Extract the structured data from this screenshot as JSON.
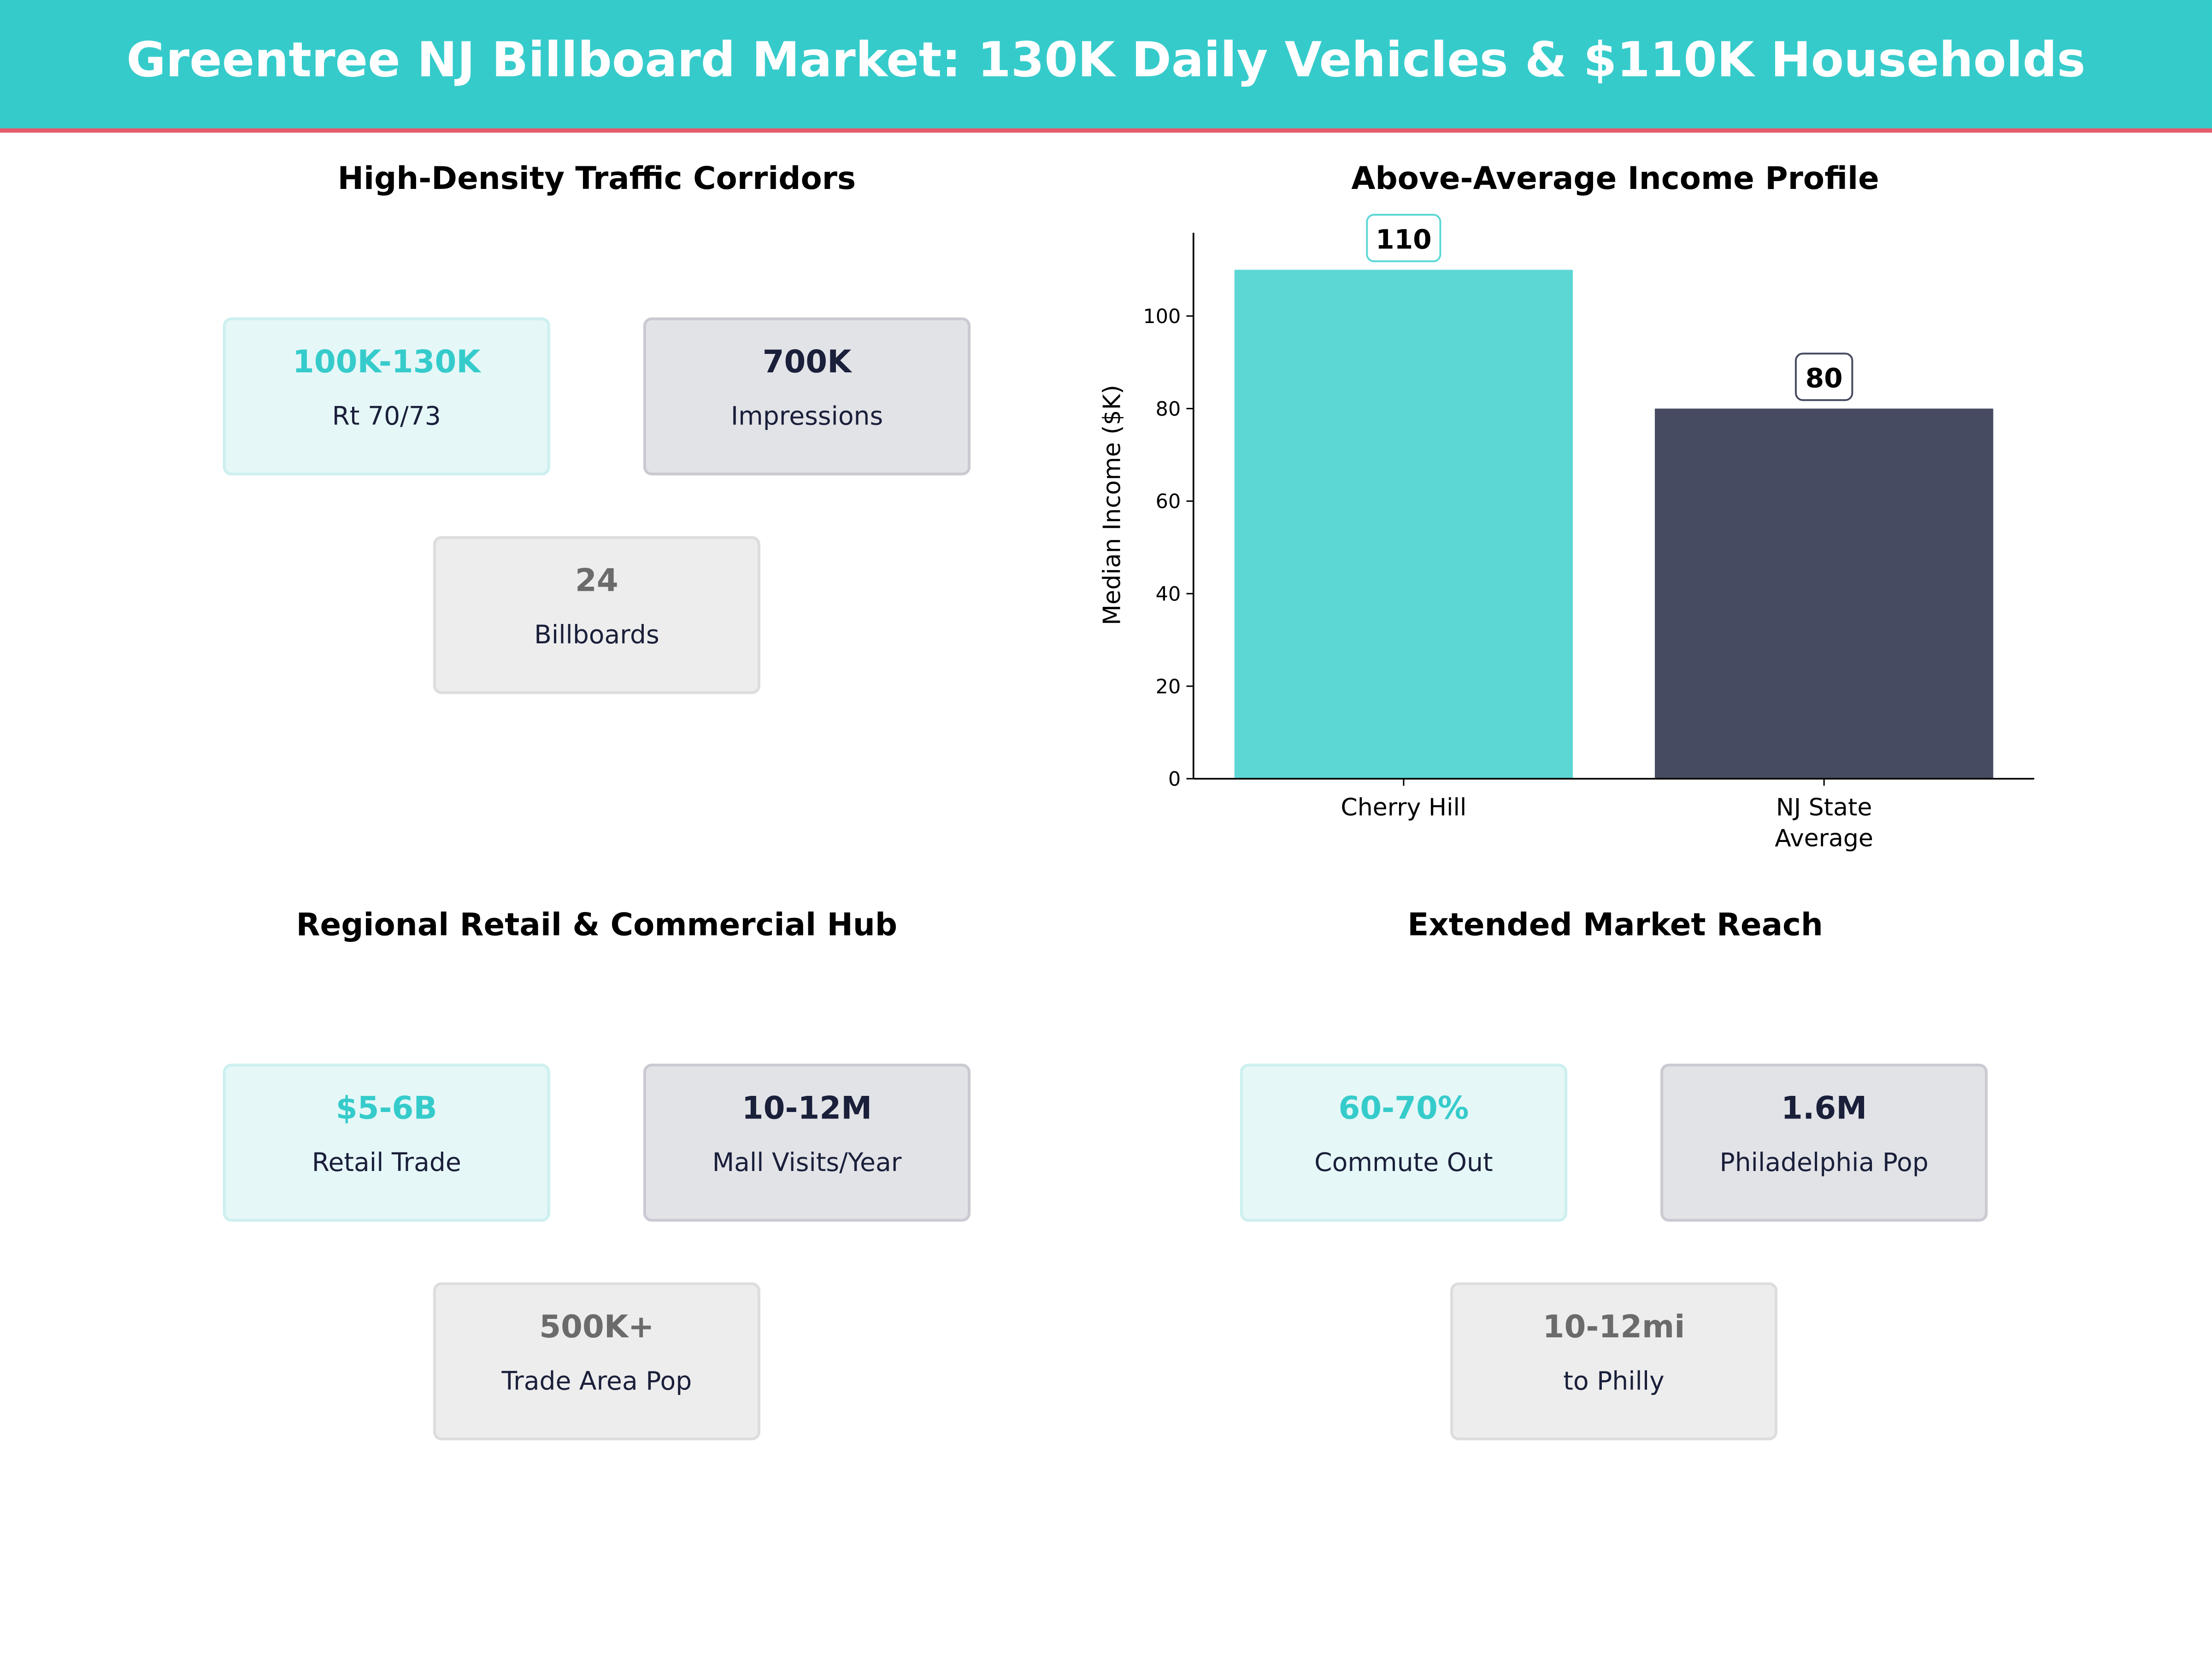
{
  "header": {
    "title": "Greentree NJ Billboard Market: 130K Daily Vehicles & $110K Households"
  },
  "panels": [
    {
      "title": "High-Density Traffic Corridors",
      "cards": [
        {
          "value": "100K-130K",
          "label": "Rt 70/73"
        },
        {
          "value": "700K",
          "label": "Impressions"
        },
        {
          "value": "24",
          "label": "Billboards"
        }
      ]
    },
    {
      "title": "Regional Retail & Commercial Hub",
      "cards": [
        {
          "value": "$5-6B",
          "label": "Retail Trade"
        },
        {
          "value": "10-12M",
          "label": "Mall Visits/Year"
        },
        {
          "value": "500K+",
          "label": "Trade Area Pop"
        }
      ]
    },
    {
      "title": "Extended Market Reach",
      "cards": [
        {
          "value": "60-70%",
          "label": "Commute Out"
        },
        {
          "value": "1.6M",
          "label": "Philadelphia Pop"
        },
        {
          "value": "10-12mi",
          "label": "to Philly"
        }
      ]
    }
  ],
  "colors": {
    "teal": "#36CBCB",
    "accent_line": "#E85A6A",
    "dark": "#464B61",
    "bar_teal": "#5DD7D4"
  },
  "chart_data": {
    "type": "bar",
    "title": "Above-Average Income Profile",
    "categories": [
      "Cherry Hill",
      "NJ State\nAverage"
    ],
    "category_lines": [
      [
        "Cherry Hill"
      ],
      [
        "NJ State",
        "Average"
      ]
    ],
    "values": [
      110,
      80
    ],
    "data_labels": [
      "110",
      "80"
    ],
    "bar_colors": [
      "#5DD7D4",
      "#464B61"
    ],
    "xlabel": "",
    "ylabel": "Median Income ($K)",
    "ylim": [
      0,
      118
    ],
    "yticks": [
      0,
      20,
      40,
      60,
      80,
      100
    ],
    "grid": false
  }
}
